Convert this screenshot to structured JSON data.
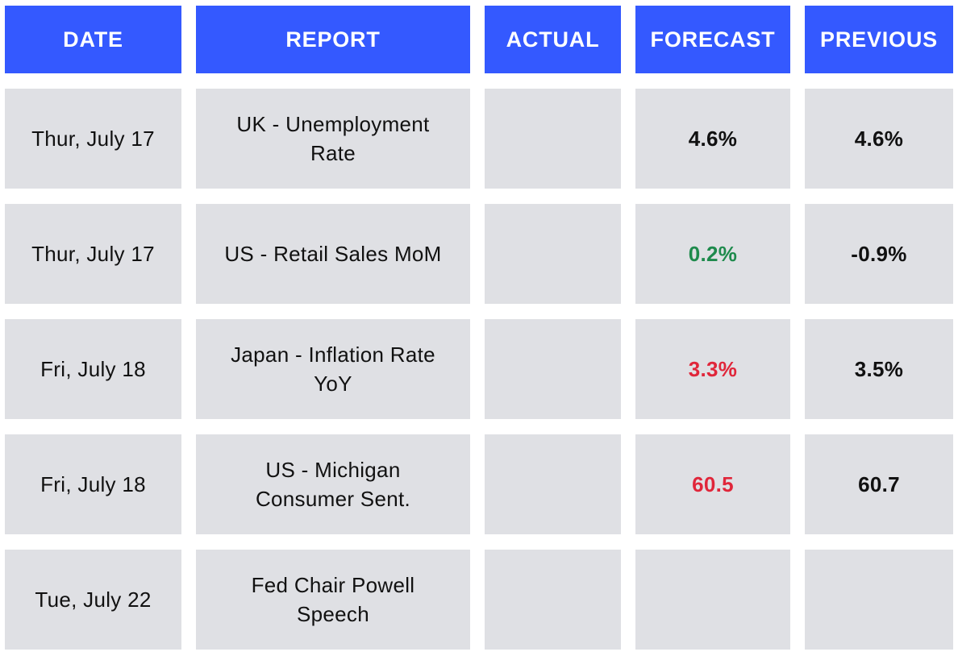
{
  "colors": {
    "header_bg": "#3459ff",
    "cell_bg": "#dfe0e4",
    "positive": "#1e8a4c",
    "negative": "#e0263a",
    "neutral": "#111111"
  },
  "columns": {
    "date": "DATE",
    "report": "REPORT",
    "actual": "ACTUAL",
    "forecast": "FORECAST",
    "previous": "PREVIOUS"
  },
  "rows": [
    {
      "date": "Thur, July 17",
      "report": "UK - Unemployment Rate",
      "actual": "",
      "forecast": "4.6%",
      "forecast_color": "#111111",
      "previous": "4.6%"
    },
    {
      "date": "Thur, July 17",
      "report": "US - Retail Sales MoM",
      "actual": "",
      "forecast": "0.2%",
      "forecast_color": "#1e8a4c",
      "previous": "-0.9%"
    },
    {
      "date": "Fri, July 18",
      "report": "Japan - Inflation Rate YoY",
      "actual": "",
      "forecast": "3.3%",
      "forecast_color": "#e0263a",
      "previous": "3.5%"
    },
    {
      "date": "Fri, July 18",
      "report": "US - Michigan Consumer Sent.",
      "actual": "",
      "forecast": "60.5",
      "forecast_color": "#e0263a",
      "previous": "60.7"
    },
    {
      "date": "Tue, July 22",
      "report": "Fed Chair Powell Speech",
      "actual": "",
      "forecast": "",
      "forecast_color": "#111111",
      "previous": ""
    }
  ]
}
